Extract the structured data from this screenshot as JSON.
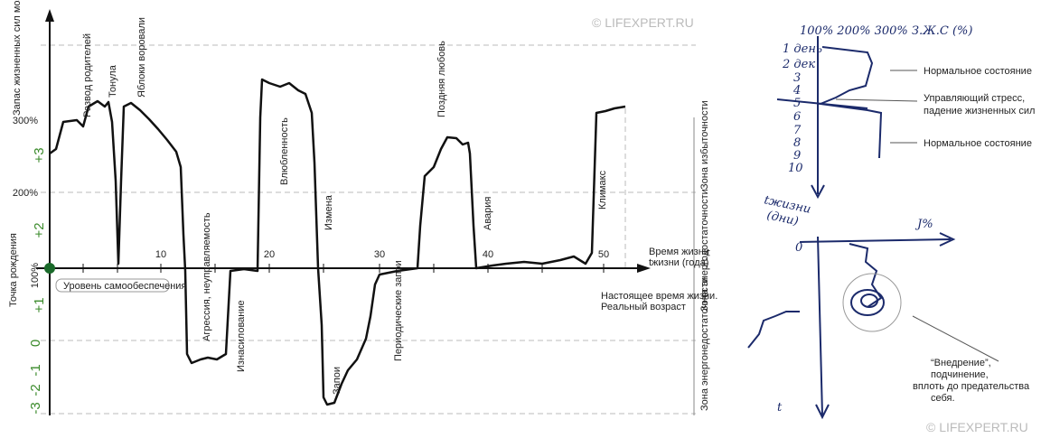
{
  "watermarks": [
    "© LIFEXPERT.RU",
    "© LIFEXPERT.RU"
  ],
  "main": {
    "y_title": "Запас жизненных сил мозга (%)",
    "y_percent": [
      "300%",
      "200%",
      "100%"
    ],
    "y_scale": [
      "+3",
      "+2",
      "+1",
      "0",
      "-1",
      "-2",
      "-3"
    ],
    "birth": "Точка рождения",
    "self_level": "Уровень самообеспечения",
    "x_ticks": [
      "10",
      "20",
      "30",
      "40",
      "50"
    ],
    "x_title": [
      "Время жизни",
      "tжизни (года)"
    ],
    "events": [
      "Развод родителей",
      "Тонула",
      "Яблоки воровали",
      "Влюбленность",
      "Измена",
      "Поздняя любовь",
      "Авария",
      "Климакс",
      "Агрессия, неуправляемость",
      "Изнасилование",
      "Запои",
      "Периодические запои"
    ],
    "now": [
      "Настоящее время жизни.",
      "Реальный возраст"
    ],
    "zones": [
      "Зона избыточности",
      "Зона энергодостаточности",
      "Зона энергонедостаточности"
    ]
  },
  "sketch1": {
    "header": "100% 200% 300% З.Ж.С (%)",
    "rows": [
      "1 день",
      "2 дек",
      "3",
      "4",
      "5",
      "6",
      "7",
      "8",
      "9",
      "10"
    ],
    "notes": [
      "Нормальное состояние",
      "Управляющий стресс,",
      "падение жизненных сил",
      "Нормальное состояние"
    ],
    "axis": [
      "tжизни",
      "(дни)"
    ]
  },
  "sketch2": {
    "y_label": "J%",
    "zero": "0",
    "t_label": "t",
    "note": [
      "“Внедрение”,",
      "подчинение,",
      "вплоть до предательства",
      "себя."
    ]
  }
}
